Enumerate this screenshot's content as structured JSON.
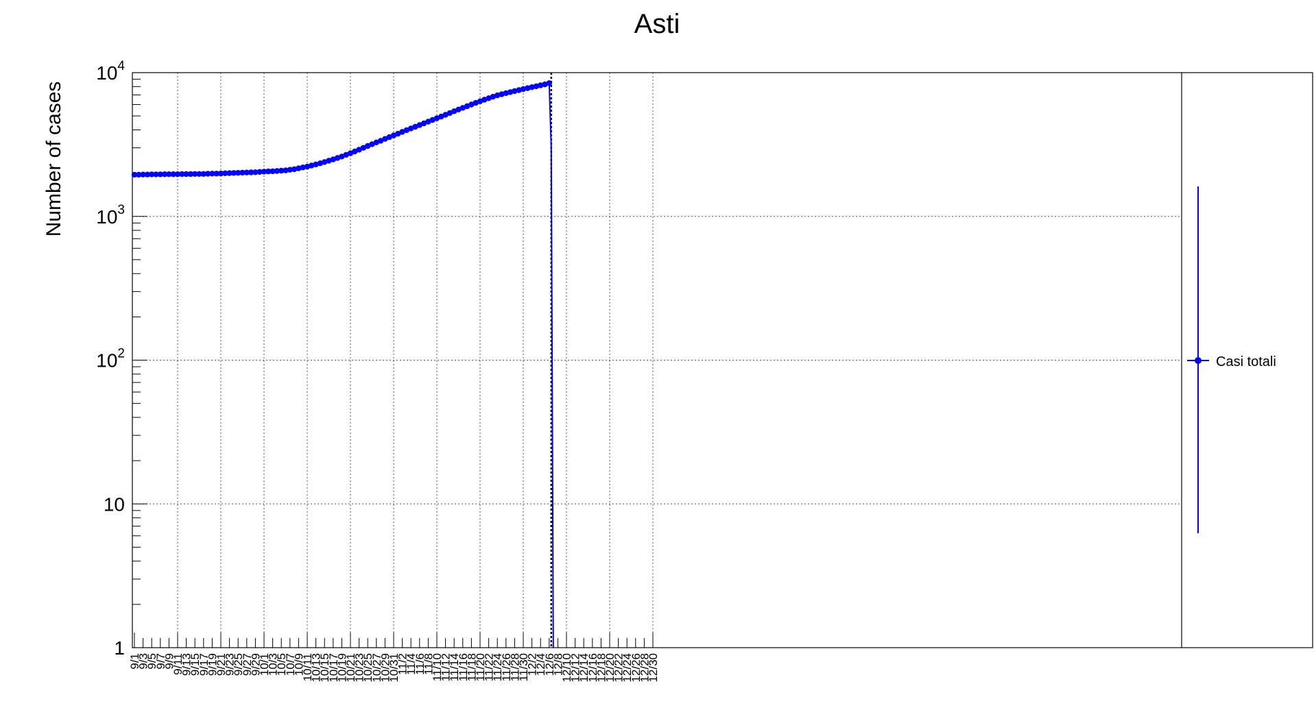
{
  "chart_data": {
    "type": "line",
    "title": "Asti",
    "ylabel": "Number of cases",
    "xlabel": "",
    "yscale": "log",
    "ylim": [
      1,
      10000
    ],
    "grid": true,
    "legend_position": "right",
    "x_tick_labels": [
      "9/1",
      "9/3",
      "9/5",
      "9/7",
      "9/9",
      "9/11",
      "9/13",
      "9/15",
      "9/17",
      "9/19",
      "9/21",
      "9/23",
      "9/25",
      "9/27",
      "9/29",
      "10/1",
      "10/3",
      "10/5",
      "10/7",
      "10/9",
      "10/11",
      "10/13",
      "10/15",
      "10/17",
      "10/19",
      "10/21",
      "10/23",
      "10/25",
      "10/27",
      "10/29",
      "10/31",
      "11/2",
      "11/4",
      "11/6",
      "11/8",
      "11/10",
      "11/12",
      "11/14",
      "11/16",
      "11/18",
      "11/20",
      "11/22",
      "11/24",
      "11/26",
      "11/28",
      "11/30",
      "12/2",
      "12/4",
      "12/6",
      "12/8",
      "12/10",
      "12/12",
      "12/14",
      "12/16",
      "12/18",
      "12/20",
      "12/22",
      "12/24",
      "12/26",
      "12/28",
      "12/30"
    ],
    "y_ticks": [
      {
        "value": 1,
        "base": "1",
        "exp": ""
      },
      {
        "value": 10,
        "base": "10",
        "exp": ""
      },
      {
        "value": 100,
        "base": "10",
        "exp": "2"
      },
      {
        "value": 1000,
        "base": "10",
        "exp": "3"
      },
      {
        "value": 10000,
        "base": "10",
        "exp": "4"
      }
    ],
    "marker_day_index": 96,
    "series": [
      {
        "name": "Casi totali",
        "color": "#0000ff",
        "start_date": "9/1",
        "values": [
          1950,
          1950,
          1955,
          1955,
          1960,
          1960,
          1960,
          1965,
          1965,
          1965,
          1965,
          1970,
          1970,
          1970,
          1975,
          1975,
          1975,
          1980,
          1985,
          1985,
          1990,
          1995,
          2000,
          2005,
          2010,
          2015,
          2020,
          2025,
          2030,
          2040,
          2050,
          2055,
          2060,
          2070,
          2080,
          2090,
          2110,
          2130,
          2160,
          2190,
          2220,
          2260,
          2300,
          2340,
          2390,
          2440,
          2490,
          2550,
          2610,
          2680,
          2750,
          2830,
          2910,
          3000,
          3090,
          3180,
          3270,
          3360,
          3460,
          3560,
          3660,
          3760,
          3870,
          3980,
          4090,
          4200,
          4320,
          4440,
          4560,
          4690,
          4820,
          4950,
          5090,
          5240,
          5390,
          5540,
          5690,
          5840,
          6000,
          6160,
          6320,
          6480,
          6640,
          6800,
          6950,
          7080,
          7200,
          7320,
          7440,
          7560,
          7680,
          7800,
          7920,
          8040,
          8160,
          8290,
          8450
        ]
      }
    ]
  }
}
